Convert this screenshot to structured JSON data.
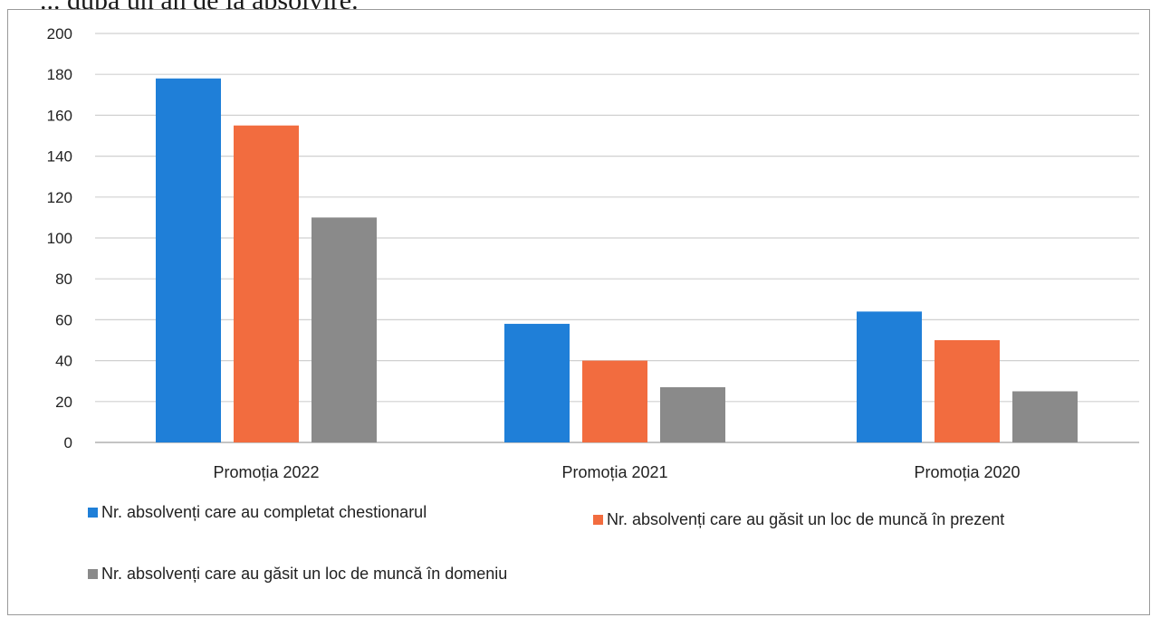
{
  "caption": "... după un an de la absolvire.",
  "chart_data": {
    "type": "bar",
    "categories": [
      "Promoția 2022",
      "Promoția 2021",
      "Promoția 2020"
    ],
    "series": [
      {
        "name": "Nr. absolvenți care au completat chestionarul",
        "values": [
          178,
          58,
          64
        ],
        "color": "#1f7fd8"
      },
      {
        "name": "Nr. absolvenți care au găsit un loc de muncă în prezent",
        "values": [
          155,
          40,
          50
        ],
        "color": "#f26c3f"
      },
      {
        "name": "Nr. absolvenți care au găsit un loc de muncă în domeniu",
        "values": [
          110,
          27,
          25
        ],
        "color": "#8a8a8a"
      }
    ],
    "yticks": [
      0,
      20,
      40,
      60,
      80,
      100,
      120,
      140,
      160,
      180,
      200
    ],
    "ylim": [
      0,
      200
    ],
    "grid": true,
    "legend": "bottom"
  }
}
